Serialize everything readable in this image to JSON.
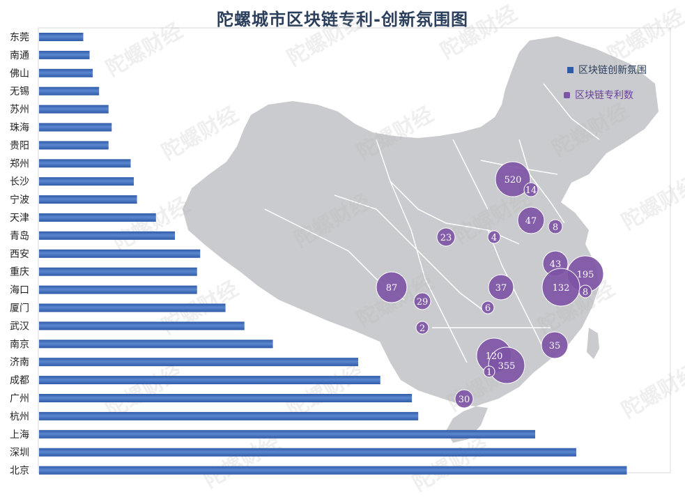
{
  "title": "陀螺城市区块链专利-创新氛围图",
  "watermark": "陀螺财经",
  "colors": {
    "bar": "#2e5aa8",
    "bar_light": "#5b87cf",
    "bubble": "#7e55a6",
    "map": "#c9cbce",
    "map_stroke": "#ffffff"
  },
  "legend": {
    "bar_label": "区块链创新氛围",
    "bubble_label": "区块链专利数"
  },
  "chart_data": [
    {
      "type": "bar",
      "orientation": "horizontal",
      "series_name": "区块链创新氛围",
      "categories": [
        "东莞",
        "南通",
        "佛山",
        "无锡",
        "苏州",
        "珠海",
        "贵阳",
        "郑州",
        "长沙",
        "宁波",
        "天津",
        "青岛",
        "西安",
        "重庆",
        "海口",
        "厦门",
        "武汉",
        "南京",
        "济南",
        "成都",
        "广州",
        "杭州",
        "上海",
        "深圳",
        "北京"
      ],
      "values": [
        7,
        8,
        8.5,
        9.5,
        11,
        11.5,
        11,
        14.5,
        15,
        15.5,
        18.5,
        21.5,
        25.5,
        25,
        25,
        29.5,
        32.5,
        37,
        50.5,
        54,
        59,
        60,
        78.5,
        85,
        93
      ],
      "xlim": [
        0,
        100
      ],
      "value_axis_labels": false
    },
    {
      "type": "scatter",
      "subtype": "bubble",
      "series_name": "区块链专利数",
      "values": [
        520,
        14,
        47,
        8,
        4,
        23,
        43,
        195,
        87,
        37,
        132,
        8,
        29,
        6,
        2,
        35,
        120,
        355,
        1,
        30
      ]
    }
  ]
}
